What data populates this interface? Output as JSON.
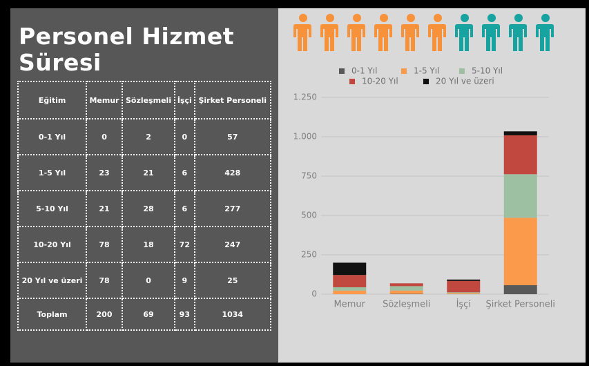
{
  "header": {
    "title": "Personel Hizmet Süresi"
  },
  "table": {
    "header": [
      "Eğitim",
      "Memur",
      "Sözleşmeli",
      "İşçi",
      "Şirket Personeli"
    ],
    "rows": [
      [
        "0-1 Yıl",
        0,
        2,
        0,
        57
      ],
      [
        "1-5 Yıl",
        23,
        21,
        6,
        428
      ],
      [
        "5-10 Yıl",
        21,
        28,
        6,
        277
      ],
      [
        "10-20 Yıl",
        78,
        18,
        72,
        247
      ],
      [
        "20 Yıl ve üzeri",
        78,
        0,
        9,
        25
      ],
      [
        "Toplam",
        200,
        69,
        93,
        1034
      ]
    ]
  },
  "chart_data": {
    "type": "stacked_bar",
    "categories": [
      "Memur",
      "Sözleşmeli",
      "İşçi",
      "Şirket Personeli"
    ],
    "series": [
      {
        "name": "0-1 Yıl",
        "color": "#595959",
        "values": [
          0,
          2,
          0,
          57
        ]
      },
      {
        "name": "1-5 Yıl",
        "color": "#fb9a4b",
        "values": [
          23,
          21,
          6,
          428
        ]
      },
      {
        "name": "5-10 Yıl",
        "color": "#9dbfa2",
        "values": [
          21,
          28,
          6,
          277
        ]
      },
      {
        "name": "10-20 Yıl",
        "color": "#c0483e",
        "values": [
          78,
          18,
          72,
          247
        ]
      },
      {
        "name": "20 Yıl ve üzeri",
        "color": "#111111",
        "values": [
          78,
          0,
          9,
          25
        ]
      }
    ],
    "ylim": [
      0,
      1250
    ],
    "yticks": [
      0,
      250,
      500,
      750,
      {
        "value": 1000,
        "label": "1.000"
      },
      {
        "value": 1250,
        "label": "1.250"
      }
    ],
    "grid": true,
    "legend": "top"
  }
}
